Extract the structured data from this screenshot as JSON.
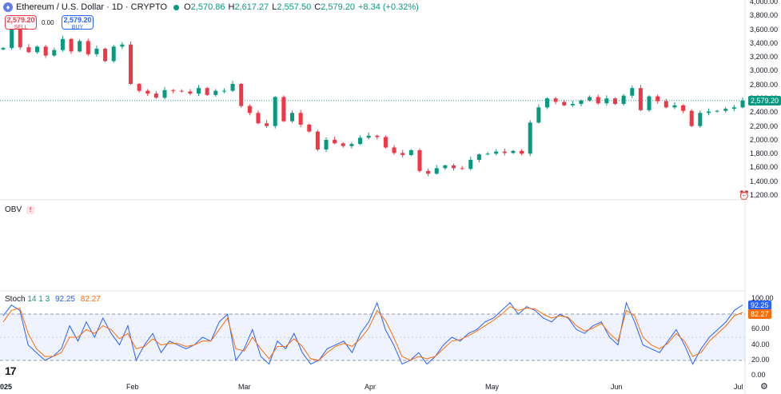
{
  "header": {
    "title": "Ethereum / U.S. Dollar · 1D · CRYPTO",
    "ohlc": [
      {
        "label": "O",
        "value": "2,570.86"
      },
      {
        "label": "H",
        "value": "2,617.27"
      },
      {
        "label": "L",
        "value": "2,557.50"
      },
      {
        "label": "C",
        "value": "2,579.20"
      }
    ],
    "change": "+8.34 (+0.32%)"
  },
  "trade": {
    "sell_price": "2,579.20",
    "sell_label": "SELL",
    "spread": "0.00",
    "buy_price": "2,579.20",
    "buy_label": "BUY"
  },
  "price_axis": {
    "labels": [
      "4,000.00",
      "3,800.00",
      "3,600.00",
      "3,400.00",
      "3,200.00",
      "3,000.00",
      "2,800.00",
      "2,600.00",
      "2,400.00",
      "2,200.00",
      "2,000.00",
      "1,800.00",
      "1,600.00",
      "1,400.00",
      "1,200.00"
    ],
    "last_price": "2,579.20"
  },
  "obv": {
    "label": "OBV",
    "warning": "!"
  },
  "stoch": {
    "label": "Stoch",
    "params": "14 1 3",
    "k": "92.25",
    "d": "82.27",
    "axis": [
      "100.00",
      "80.00",
      "60.00",
      "40.00",
      "20.00",
      "0.00"
    ]
  },
  "time_axis": [
    "025",
    "Feb",
    "Mar",
    "Apr",
    "May",
    "Jun",
    "Jul"
  ],
  "colors": {
    "up": "#089981",
    "down": "#f23645",
    "k": "#2962ff",
    "d": "#ff6d00",
    "band": "#2962ff"
  },
  "icons": {
    "logo": "tradingview-logo",
    "settings": "gear-icon",
    "alert": "alert-icon",
    "symbol": "ethereum-icon"
  },
  "chart_data": [
    {
      "type": "candlestick",
      "title": "Ethereum / U.S. Dollar · 1D · CRYPTO",
      "ylim": [
        1200,
        4000
      ],
      "x_range": [
        "2025-01-01",
        "2025-07-03"
      ],
      "approx_closes": [
        3340,
        3620,
        3350,
        3280,
        3360,
        3230,
        3310,
        3470,
        3290,
        3440,
        3250,
        3330,
        3150,
        3360,
        3390,
        2820,
        2720,
        2680,
        2620,
        2730,
        2720,
        2710,
        2680,
        2760,
        2660,
        2720,
        2720,
        2820,
        2500,
        2400,
        2250,
        2210,
        2630,
        2280,
        2400,
        2230,
        2130,
        1870,
        2010,
        1960,
        1920,
        1950,
        2040,
        2070,
        2050,
        1900,
        1820,
        1790,
        1860,
        1560,
        1520,
        1600,
        1640,
        1600,
        1590,
        1720,
        1800,
        1810,
        1840,
        1820,
        1850,
        1810,
        2260,
        2480,
        2610,
        2560,
        2510,
        2530,
        2580,
        2630,
        2540,
        2610,
        2530,
        2650,
        2760,
        2440,
        2640,
        2570,
        2480,
        2510,
        2430,
        2210,
        2400,
        2420,
        2430,
        2460,
        2480,
        2579.2
      ]
    },
    {
      "type": "line",
      "title": "Stoch",
      "ylim": [
        0,
        100
      ],
      "series": [
        {
          "name": "%K",
          "values": [
            78,
            92,
            85,
            40,
            30,
            20,
            25,
            35,
            65,
            45,
            70,
            50,
            75,
            55,
            40,
            65,
            20,
            40,
            55,
            30,
            45,
            40,
            35,
            40,
            50,
            45,
            70,
            80,
            20,
            35,
            60,
            25,
            15,
            45,
            35,
            55,
            30,
            15,
            20,
            35,
            40,
            45,
            30,
            55,
            70,
            95,
            60,
            40,
            15,
            20,
            30,
            15,
            25,
            40,
            50,
            45,
            55,
            60,
            70,
            75,
            85,
            95,
            80,
            90,
            85,
            75,
            70,
            80,
            75,
            60,
            55,
            65,
            70,
            50,
            40,
            95,
            70,
            40,
            35,
            30,
            45,
            60,
            40,
            15,
            35,
            50,
            60,
            70,
            85,
            92
          ]
        },
        {
          "name": "%D",
          "values": [
            70,
            85,
            88,
            55,
            35,
            25,
            25,
            30,
            50,
            50,
            60,
            55,
            65,
            60,
            48,
            55,
            35,
            38,
            48,
            40,
            42,
            42,
            38,
            40,
            45,
            45,
            60,
            75,
            35,
            32,
            50,
            35,
            22,
            38,
            38,
            48,
            38,
            22,
            20,
            30,
            38,
            42,
            38,
            48,
            62,
            85,
            72,
            50,
            25,
            20,
            25,
            22,
            25,
            35,
            45,
            47,
            52,
            58,
            65,
            72,
            80,
            90,
            85,
            88,
            87,
            80,
            75,
            78,
            76,
            65,
            58,
            62,
            68,
            55,
            45,
            85,
            78,
            50,
            40,
            35,
            42,
            55,
            45,
            25,
            30,
            45,
            55,
            65,
            78,
            82.27
          ]
        }
      ]
    }
  ]
}
